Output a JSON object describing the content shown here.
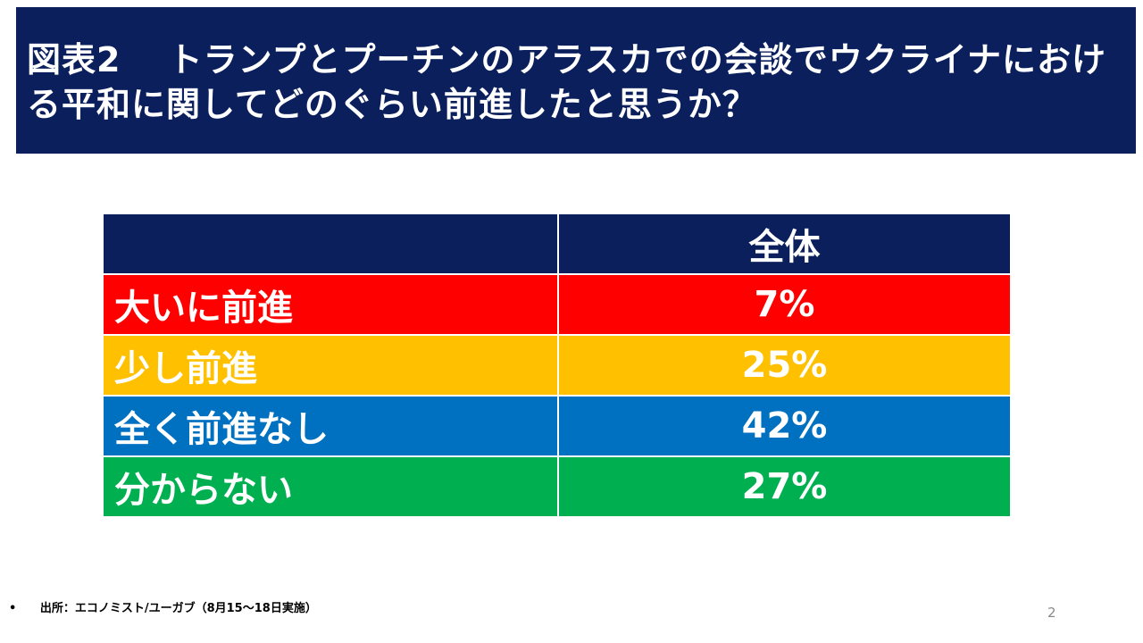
{
  "title": "図表2　 トランプとプーチンのアラスカでの会談でウクライナにおける平和に関してどのぐらい前進したと思うか？",
  "chart_data": {
    "type": "table",
    "title": "図表2　 トランプとプーチンのアラスカでの会談でウクライナにおける平和に関してどのぐらい前進したと思うか？",
    "column_header": "全体",
    "categories": [
      "大いに前進",
      "少し前進",
      "全く前進なし",
      "分からない"
    ],
    "values": [
      7,
      25,
      42,
      27
    ],
    "display_values": [
      "7%",
      "25%",
      "42%",
      "27%"
    ],
    "row_colors": [
      "#ff0000",
      "#ffc000",
      "#0070c0",
      "#00b050"
    ],
    "header_color": "#0b1f5c"
  },
  "source": {
    "bullet": "•",
    "text": "出所：エコノミスト/ユーガブ（8月15～18日実施）"
  },
  "page_number": "2"
}
